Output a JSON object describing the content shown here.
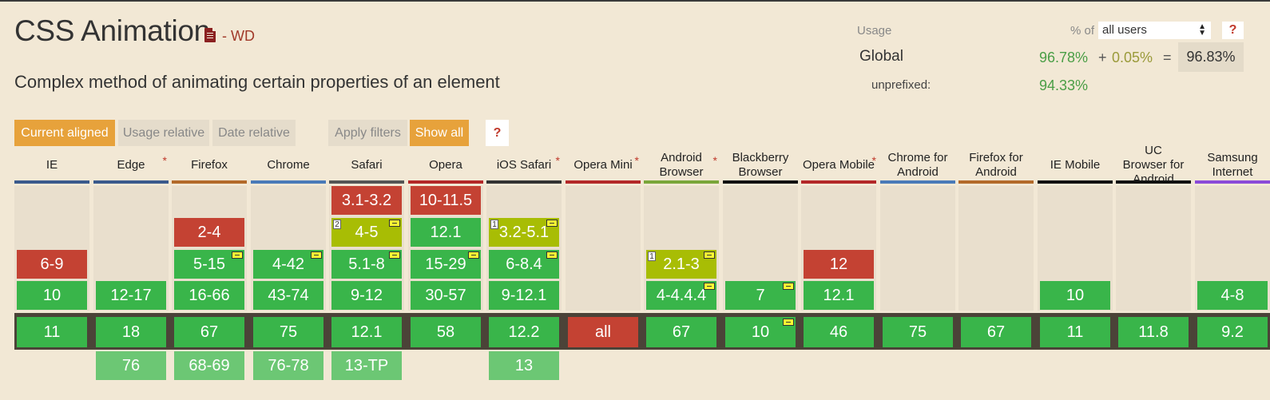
{
  "page": {
    "title": "CSS Animation",
    "status": "- WD",
    "description": "Complex method of animating certain properties of an element"
  },
  "usage": {
    "label": "Usage",
    "pct_of": "% of",
    "select_value": "all users",
    "help": "?",
    "global_label": "Global",
    "supported": "96.78%",
    "plus": "+",
    "partial": "0.05%",
    "eq": "=",
    "total": "96.83%",
    "unprefixed_label": "unprefixed:",
    "unprefixed": "94.33%"
  },
  "filters": {
    "current_aligned": "Current aligned",
    "usage_relative": "Usage relative",
    "date_relative": "Date relative",
    "apply_filters": "Apply filters",
    "show_all": "Show all",
    "help": "?"
  },
  "colors": {
    "yes": "#39b54a",
    "no": "#c44233",
    "partial": "#a8bd04",
    "upcoming": "#6cc774",
    "accent": "#e7a23b"
  },
  "browsers": [
    {
      "name": "IE",
      "star": "",
      "bar": "#3a5a8c",
      "cells": [
        {
          "row": 2,
          "v": "6-9",
          "s": "n"
        },
        {
          "row": 3,
          "v": "10",
          "s": "y"
        },
        {
          "row": 4,
          "v": "11",
          "s": "y"
        }
      ]
    },
    {
      "name": "Edge",
      "star": "*",
      "bar": "#3a5a8c",
      "cells": [
        {
          "row": 3,
          "v": "12-17",
          "s": "y"
        },
        {
          "row": 4,
          "v": "18",
          "s": "y"
        },
        {
          "row": 5,
          "v": "76",
          "s": "u"
        }
      ]
    },
    {
      "name": "Firefox",
      "star": "",
      "bar": "#b36a2a",
      "cells": [
        {
          "row": 1,
          "v": "2-4",
          "s": "n"
        },
        {
          "row": 2,
          "v": "5-15",
          "s": "y",
          "pre": true
        },
        {
          "row": 3,
          "v": "16-66",
          "s": "y"
        },
        {
          "row": 4,
          "v": "67",
          "s": "y"
        },
        {
          "row": 5,
          "v": "68-69",
          "s": "u"
        }
      ]
    },
    {
      "name": "Chrome",
      "star": "",
      "bar": "#4a7ab8",
      "cells": [
        {
          "row": 2,
          "v": "4-42",
          "s": "y",
          "pre": true
        },
        {
          "row": 3,
          "v": "43-74",
          "s": "y"
        },
        {
          "row": 4,
          "v": "75",
          "s": "y"
        },
        {
          "row": 5,
          "v": "76-78",
          "s": "u"
        }
      ]
    },
    {
      "name": "Safari",
      "star": "",
      "bar": "#555555",
      "cells": [
        {
          "row": 0,
          "v": "3.1-3.2",
          "s": "n"
        },
        {
          "row": 1,
          "v": "4-5",
          "s": "a",
          "pre": true,
          "note": "2"
        },
        {
          "row": 2,
          "v": "5.1-8",
          "s": "y",
          "pre": true
        },
        {
          "row": 3,
          "v": "9-12",
          "s": "y"
        },
        {
          "row": 4,
          "v": "12.1",
          "s": "y"
        },
        {
          "row": 5,
          "v": "13-TP",
          "s": "u"
        }
      ]
    },
    {
      "name": "Opera",
      "star": "",
      "bar": "#b32828",
      "cells": [
        {
          "row": 0,
          "v": "10-11.5",
          "s": "n"
        },
        {
          "row": 1,
          "v": "12.1",
          "s": "y"
        },
        {
          "row": 2,
          "v": "15-29",
          "s": "y",
          "pre": true
        },
        {
          "row": 3,
          "v": "30-57",
          "s": "y"
        },
        {
          "row": 4,
          "v": "58",
          "s": "y"
        }
      ]
    },
    {
      "name": "iOS Safari",
      "star": "*",
      "bar": "#333333",
      "cells": [
        {
          "row": 1,
          "v": "3.2-5.1",
          "s": "a",
          "pre": true,
          "note": "1"
        },
        {
          "row": 2,
          "v": "6-8.4",
          "s": "y",
          "pre": true
        },
        {
          "row": 3,
          "v": "9-12.1",
          "s": "y"
        },
        {
          "row": 4,
          "v": "12.2",
          "s": "y"
        },
        {
          "row": 5,
          "v": "13",
          "s": "u"
        }
      ]
    },
    {
      "name": "Opera Mini",
      "star": "*",
      "bar": "#b32828",
      "cells": [
        {
          "row": 4,
          "v": "all",
          "s": "n"
        }
      ]
    },
    {
      "name": "Android Browser",
      "star": "*",
      "bar": "#7aa63a",
      "cells": [
        {
          "row": 2,
          "v": "2.1-3",
          "s": "a",
          "pre": true,
          "note": "1"
        },
        {
          "row": 3,
          "v": "4-4.4.4",
          "s": "y",
          "pre": true
        },
        {
          "row": 4,
          "v": "67",
          "s": "y"
        }
      ]
    },
    {
      "name": "Blackberry Browser",
      "star": "",
      "bar": "#111111",
      "cells": [
        {
          "row": 3,
          "v": "7",
          "s": "y",
          "pre": true
        },
        {
          "row": 4,
          "v": "10",
          "s": "y",
          "pre": true
        }
      ]
    },
    {
      "name": "Opera Mobile",
      "star": "*",
      "bar": "#b32828",
      "cells": [
        {
          "row": 2,
          "v": "12",
          "s": "n"
        },
        {
          "row": 3,
          "v": "12.1",
          "s": "y"
        },
        {
          "row": 4,
          "v": "46",
          "s": "y"
        }
      ]
    },
    {
      "name": "Chrome for Android",
      "star": "",
      "bar": "#4a7ab8",
      "cells": [
        {
          "row": 4,
          "v": "75",
          "s": "y"
        }
      ]
    },
    {
      "name": "Firefox for Android",
      "star": "",
      "bar": "#b36a2a",
      "cells": [
        {
          "row": 4,
          "v": "67",
          "s": "y"
        }
      ]
    },
    {
      "name": "IE Mobile",
      "star": "",
      "bar": "#111111",
      "cells": [
        {
          "row": 3,
          "v": "10",
          "s": "y"
        },
        {
          "row": 4,
          "v": "11",
          "s": "y"
        }
      ]
    },
    {
      "name": "UC Browser for Android",
      "star": "",
      "bar": "#111111",
      "cells": [
        {
          "row": 4,
          "v": "11.8",
          "s": "y"
        }
      ]
    },
    {
      "name": "Samsung Internet",
      "star": "",
      "bar": "#8a4ad8",
      "cells": [
        {
          "row": 3,
          "v": "4-8",
          "s": "y"
        },
        {
          "row": 4,
          "v": "9.2",
          "s": "y"
        }
      ]
    }
  ]
}
